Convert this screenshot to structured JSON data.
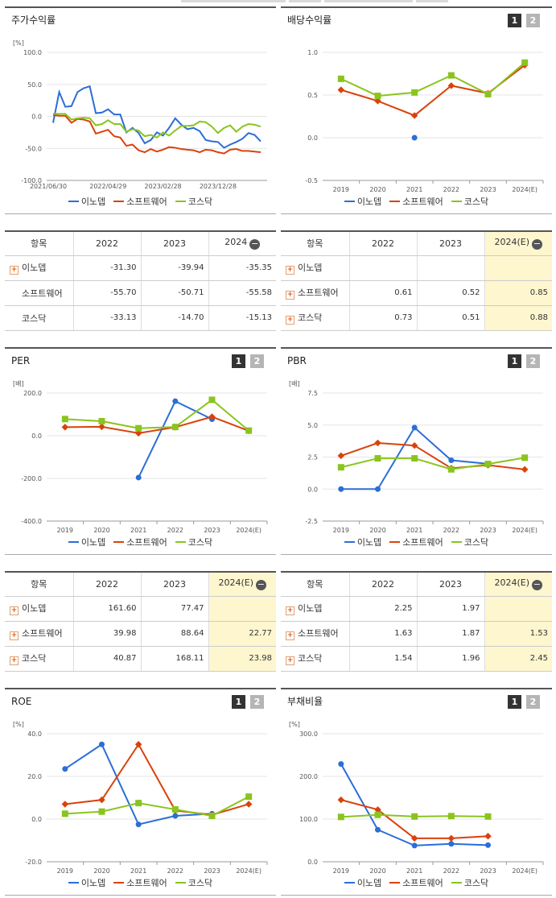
{
  "colors": {
    "inodep": "#2b6ed6",
    "software": "#d9420b",
    "kosdaq": "#8ac41e",
    "highlight": "#fdf6cf"
  },
  "legend": [
    "이노뎁",
    "소프트웨어",
    "코스닥"
  ],
  "pager": {
    "p1": "1",
    "p2": "2"
  },
  "collapse_icon": "minus-circle-icon",
  "panels": {
    "stock": {
      "title": "주가수익률",
      "unit": "[%]"
    },
    "dividend": {
      "title": "배당수익률",
      "unit": ""
    },
    "per": {
      "title": "PER",
      "unit": "[배]"
    },
    "pbr": {
      "title": "PBR",
      "unit": "[배]"
    },
    "roe": {
      "title": "ROE",
      "unit": "[%]"
    },
    "debt": {
      "title": "부채비율",
      "unit": "[%]"
    }
  },
  "tables": {
    "stock": {
      "headers": [
        "항목",
        "2022",
        "2023",
        "2024"
      ],
      "rows": [
        {
          "name": "이노뎁",
          "plus": true,
          "values": [
            "-31.30",
            "-39.94",
            "-35.35"
          ]
        },
        {
          "name": "소프트웨어",
          "plus": false,
          "values": [
            "-55.70",
            "-50.71",
            "-55.58"
          ]
        },
        {
          "name": "코스닥",
          "plus": false,
          "values": [
            "-33.13",
            "-14.70",
            "-15.13"
          ]
        }
      ]
    },
    "dividend": {
      "headers": [
        "항목",
        "2022",
        "2023",
        "2024(E)"
      ],
      "rows": [
        {
          "name": "이노뎁",
          "plus": true,
          "values": [
            "",
            "",
            ""
          ]
        },
        {
          "name": "소프트웨어",
          "plus": true,
          "values": [
            "0.61",
            "0.52",
            "0.85"
          ]
        },
        {
          "name": "코스닥",
          "plus": true,
          "values": [
            "0.73",
            "0.51",
            "0.88"
          ]
        }
      ]
    },
    "per": {
      "headers": [
        "항목",
        "2022",
        "2023",
        "2024(E)"
      ],
      "rows": [
        {
          "name": "이노뎁",
          "plus": true,
          "values": [
            "161.60",
            "77.47",
            ""
          ]
        },
        {
          "name": "소프트웨어",
          "plus": true,
          "values": [
            "39.98",
            "88.64",
            "22.77"
          ]
        },
        {
          "name": "코스닥",
          "plus": true,
          "values": [
            "40.87",
            "168.11",
            "23.98"
          ]
        }
      ]
    },
    "pbr": {
      "headers": [
        "항목",
        "2022",
        "2023",
        "2024(E)"
      ],
      "rows": [
        {
          "name": "이노뎁",
          "plus": true,
          "values": [
            "2.25",
            "1.97",
            ""
          ]
        },
        {
          "name": "소프트웨어",
          "plus": true,
          "values": [
            "1.63",
            "1.87",
            "1.53"
          ]
        },
        {
          "name": "코스닥",
          "plus": true,
          "values": [
            "1.54",
            "1.96",
            "2.45"
          ]
        }
      ]
    }
  },
  "chart_data": [
    {
      "id": "stock",
      "type": "line",
      "title": "주가수익률",
      "ylabel": "[%]",
      "ylim": [
        -100,
        100
      ],
      "yticks": [
        100.0,
        50.0,
        0.0,
        -50.0,
        -100.0
      ],
      "xticks": [
        "2021/06/30",
        "2022/04/29",
        "2023/02/28",
        "2023/12/28"
      ],
      "x_range": [
        "2021/06/30",
        "2024/06/28"
      ],
      "series": [
        {
          "name": "이노뎁",
          "values": [
            -10,
            38,
            15,
            16,
            38,
            44,
            47,
            5,
            6,
            11,
            3,
            3,
            -25,
            -18,
            -26,
            -42,
            -37,
            -25,
            -30,
            -18,
            -3,
            -13,
            -20,
            -18,
            -23,
            -37,
            -39,
            -40,
            -49,
            -44,
            -40,
            -35,
            -26,
            -29,
            -39
          ]
        },
        {
          "name": "소프트웨어",
          "values": [
            2,
            1,
            1,
            -10,
            -4,
            -5,
            -8,
            -27,
            -24,
            -21,
            -31,
            -33,
            -46,
            -44,
            -53,
            -56,
            -51,
            -55,
            -52,
            -48,
            -49,
            -51,
            -52,
            -53,
            -56,
            -52,
            -53,
            -56,
            -58,
            -52,
            -51,
            -54,
            -54,
            -55,
            -56
          ]
        },
        {
          "name": "코스닥",
          "values": [
            4,
            4,
            4,
            -5,
            -3,
            -2,
            -3,
            -14,
            -12,
            -6,
            -12,
            -12,
            -24,
            -20,
            -22,
            -31,
            -29,
            -33,
            -25,
            -30,
            -22,
            -15,
            -15,
            -14,
            -8,
            -9,
            -16,
            -26,
            -18,
            -14,
            -24,
            -16,
            -12,
            -13,
            -16
          ]
        }
      ]
    },
    {
      "id": "dividend",
      "type": "line",
      "title": "배당수익률",
      "categories": [
        "2019",
        "2020",
        "2021",
        "2022",
        "2023",
        "2024(E)"
      ],
      "ylim": [
        -0.5,
        1.0
      ],
      "yticks": [
        1.0,
        0.5,
        0.0,
        -0.5
      ],
      "series": [
        {
          "name": "이노뎁",
          "values": [
            null,
            null,
            0.0,
            null,
            null,
            null
          ]
        },
        {
          "name": "소프트웨어",
          "values": [
            0.56,
            0.43,
            0.26,
            0.61,
            0.52,
            0.85
          ]
        },
        {
          "name": "코스닥",
          "values": [
            0.69,
            0.49,
            0.53,
            0.73,
            0.51,
            0.88
          ]
        }
      ]
    },
    {
      "id": "per",
      "type": "line",
      "title": "PER",
      "ylabel": "[배]",
      "categories": [
        "2019",
        "2020",
        "2021",
        "2022",
        "2023",
        "2024(E)"
      ],
      "ylim": [
        -400,
        200
      ],
      "yticks": [
        200.0,
        0.0,
        -200.0,
        -400.0
      ],
      "series": [
        {
          "name": "이노뎁",
          "values": [
            null,
            null,
            -196,
            161.6,
            77.47,
            null
          ]
        },
        {
          "name": "소프트웨어",
          "values": [
            40,
            42,
            12,
            39.98,
            88.64,
            22.77
          ]
        },
        {
          "name": "코스닥",
          "values": [
            78,
            68,
            35,
            40.87,
            168.11,
            23.98
          ]
        }
      ]
    },
    {
      "id": "pbr",
      "type": "line",
      "title": "PBR",
      "ylabel": "[배]",
      "categories": [
        "2019",
        "2020",
        "2021",
        "2022",
        "2023",
        "2024(E)"
      ],
      "ylim": [
        -2.5,
        7.5
      ],
      "yticks": [
        7.5,
        5.0,
        2.5,
        0.0,
        -2.5
      ],
      "series": [
        {
          "name": "이노뎁",
          "values": [
            0.0,
            0.0,
            4.8,
            2.25,
            1.97,
            null
          ]
        },
        {
          "name": "소프트웨어",
          "values": [
            2.6,
            3.6,
            3.4,
            1.63,
            1.87,
            1.53
          ]
        },
        {
          "name": "코스닥",
          "values": [
            1.7,
            2.4,
            2.4,
            1.54,
            1.96,
            2.45
          ]
        }
      ]
    },
    {
      "id": "roe",
      "type": "line",
      "title": "ROE",
      "ylabel": "[%]",
      "categories": [
        "2019",
        "2020",
        "2021",
        "2022",
        "2023",
        "2024(E)"
      ],
      "ylim": [
        -20,
        40
      ],
      "yticks": [
        40.0,
        20.0,
        0.0,
        -20.0
      ],
      "series": [
        {
          "name": "이노뎁",
          "values": [
            23.5,
            35,
            -2.5,
            1.5,
            2.5,
            null
          ]
        },
        {
          "name": "소프트웨어",
          "values": [
            7,
            9,
            35,
            4,
            2,
            7
          ]
        },
        {
          "name": "코스닥",
          "values": [
            2.5,
            3.5,
            7.5,
            4.5,
            1.5,
            10.5
          ]
        }
      ]
    },
    {
      "id": "debt",
      "type": "line",
      "title": "부채비율",
      "ylabel": "[%]",
      "categories": [
        "2019",
        "2020",
        "2021",
        "2022",
        "2023",
        "2024(E)"
      ],
      "ylim": [
        0,
        300
      ],
      "yticks": [
        300.0,
        200.0,
        100.0,
        0.0
      ],
      "series": [
        {
          "name": "이노뎁",
          "values": [
            229,
            75,
            38,
            42,
            39,
            null
          ]
        },
        {
          "name": "소프트웨어",
          "values": [
            145,
            122,
            55,
            55,
            60,
            null
          ]
        },
        {
          "name": "코스닥",
          "values": [
            105,
            110,
            106,
            107,
            106,
            null
          ]
        }
      ]
    }
  ]
}
